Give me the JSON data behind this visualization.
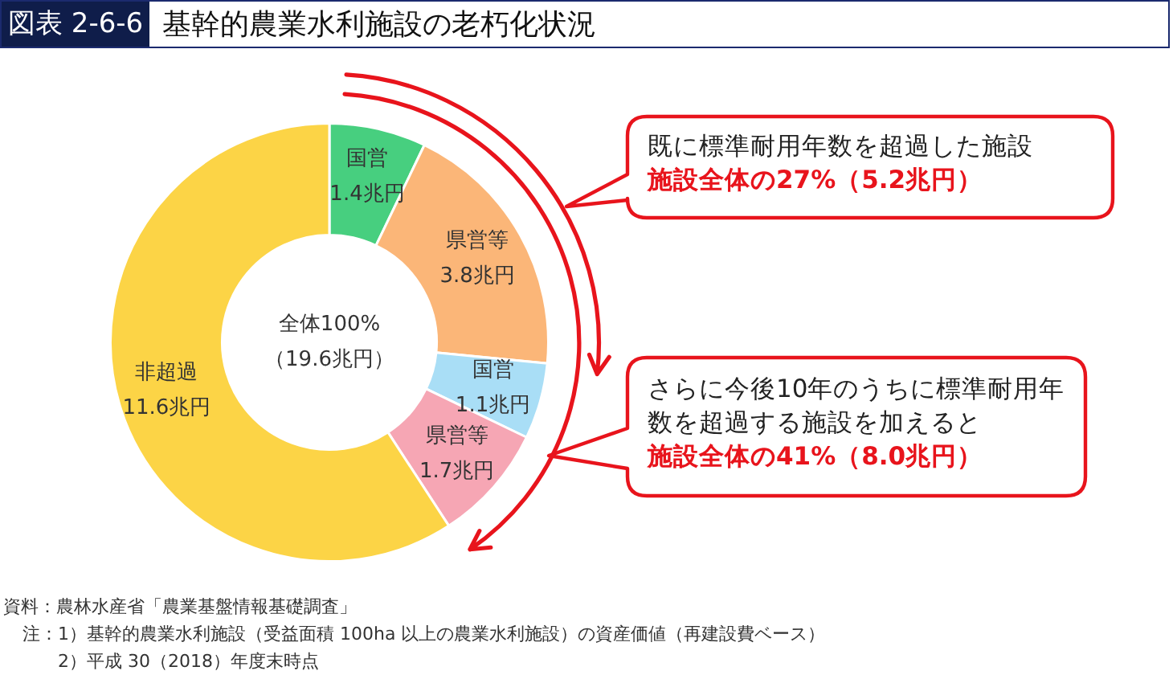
{
  "chart_data": {
    "type": "donut",
    "title": "図表 2-6-6 基幹的農業水利施設の老朽化状況",
    "categories": [
      "国営",
      "県営等",
      "国営",
      "県営等",
      "非超過"
    ],
    "values": [
      1.4,
      3.8,
      1.1,
      1.7,
      11.6
    ],
    "value_labels": [
      "1.4兆円",
      "3.8兆円",
      "1.1兆円",
      "1.7兆円",
      "11.6兆円"
    ],
    "colors": [
      "#47cf7f",
      "#fbb678",
      "#a9def6",
      "#f6a6b4",
      "#fcd446"
    ],
    "legend": false,
    "annotations": [
      "全体100%",
      "（19.6兆円）",
      "既に標準耐用年数を超過した施設",
      "施設全体の27%（5.2兆円）",
      "さらに今後10年のうちに標準耐用年数を超過する施設を加えると",
      "施設全体の41%（8.0兆円）",
      "資料：農林水産省「農業基盤情報基礎調査」",
      "注：1）基幹的農業水利施設（受益面積 100ha 以上の農業水利施設）の資産価値（再建設費ベース）",
      "2）平成 30（2018）年度末時点"
    ]
  }
}
